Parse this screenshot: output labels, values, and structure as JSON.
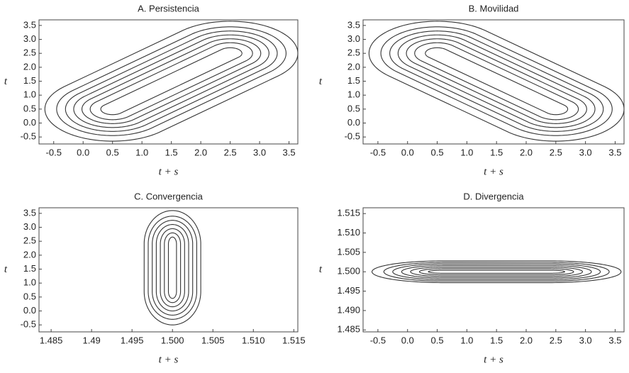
{
  "chart_data": [
    {
      "type": "contour",
      "title": "A. Persistencia",
      "xlabel": "t + s",
      "ylabel": "t",
      "xlim": [
        -0.75,
        3.65
      ],
      "ylim": [
        -0.75,
        3.7
      ],
      "xticks": [
        -0.5,
        {
          "value": 0,
          "label": "0.0"
        },
        0.5,
        {
          "value": 1,
          "label": "1.0"
        },
        1.5,
        {
          "value": 2,
          "label": "2.0"
        },
        2.5,
        {
          "value": 3,
          "label": "3.0"
        },
        3.5
      ],
      "yticks": [
        -0.5,
        {
          "value": 0,
          "label": "0.0"
        },
        0.5,
        {
          "value": 1,
          "label": "1.0"
        },
        1.5,
        {
          "value": 2,
          "label": "2.0"
        },
        2.5,
        {
          "value": 3,
          "label": "3.0"
        },
        3.5
      ],
      "color": "#333333",
      "contours": [
        {
          "x0": 0.5,
          "y0": 0.5,
          "x1": 2.5,
          "y1": 2.5,
          "rx": 0.2,
          "ry": 0.2
        },
        {
          "x0": 0.5,
          "y0": 0.5,
          "x1": 2.5,
          "y1": 2.5,
          "rx": 0.38,
          "ry": 0.38
        },
        {
          "x0": 0.5,
          "y0": 0.5,
          "x1": 2.5,
          "y1": 2.5,
          "rx": 0.52,
          "ry": 0.52
        },
        {
          "x0": 0.5,
          "y0": 0.5,
          "x1": 2.5,
          "y1": 2.5,
          "rx": 0.66,
          "ry": 0.66
        },
        {
          "x0": 0.5,
          "y0": 0.5,
          "x1": 2.5,
          "y1": 2.5,
          "rx": 0.8,
          "ry": 0.8
        },
        {
          "x0": 0.5,
          "y0": 0.5,
          "x1": 2.5,
          "y1": 2.5,
          "rx": 0.95,
          "ry": 0.95
        },
        {
          "x0": 0.5,
          "y0": 0.5,
          "x1": 2.5,
          "y1": 2.5,
          "rx": 1.15,
          "ry": 1.15
        }
      ]
    },
    {
      "type": "contour",
      "title": "B. Movilidad",
      "xlabel": "t + s",
      "ylabel": "t",
      "xlim": [
        -0.75,
        3.65
      ],
      "ylim": [
        -0.75,
        3.7
      ],
      "xticks": [
        -0.5,
        {
          "value": 0,
          "label": "0.0"
        },
        0.5,
        {
          "value": 1,
          "label": "1.0"
        },
        1.5,
        {
          "value": 2,
          "label": "2.0"
        },
        2.5,
        {
          "value": 3,
          "label": "3.0"
        },
        3.5
      ],
      "yticks": [
        -0.5,
        {
          "value": 0,
          "label": "0.0"
        },
        0.5,
        {
          "value": 1,
          "label": "1.0"
        },
        1.5,
        {
          "value": 2,
          "label": "2.0"
        },
        2.5,
        {
          "value": 3,
          "label": "3.0"
        },
        3.5
      ],
      "color": "#333333",
      "contours": [
        {
          "x0": 0.5,
          "y0": 2.5,
          "x1": 2.5,
          "y1": 0.5,
          "rx": 0.2,
          "ry": 0.2
        },
        {
          "x0": 0.5,
          "y0": 2.5,
          "x1": 2.5,
          "y1": 0.5,
          "rx": 0.38,
          "ry": 0.38
        },
        {
          "x0": 0.5,
          "y0": 2.5,
          "x1": 2.5,
          "y1": 0.5,
          "rx": 0.52,
          "ry": 0.52
        },
        {
          "x0": 0.5,
          "y0": 2.5,
          "x1": 2.5,
          "y1": 0.5,
          "rx": 0.66,
          "ry": 0.66
        },
        {
          "x0": 0.5,
          "y0": 2.5,
          "x1": 2.5,
          "y1": 0.5,
          "rx": 0.8,
          "ry": 0.8
        },
        {
          "x0": 0.5,
          "y0": 2.5,
          "x1": 2.5,
          "y1": 0.5,
          "rx": 0.95,
          "ry": 0.95
        },
        {
          "x0": 0.5,
          "y0": 2.5,
          "x1": 2.5,
          "y1": 0.5,
          "rx": 1.15,
          "ry": 1.15
        }
      ]
    },
    {
      "type": "contour",
      "title": "C. Convergencia",
      "xlabel": "t + s",
      "ylabel": "t",
      "xlim": [
        1.4835,
        1.5155
      ],
      "ylim": [
        -0.75,
        3.7
      ],
      "xticks": [
        1.485,
        1.49,
        1.495,
        {
          "value": 1.5,
          "label": "1.500"
        },
        1.505,
        {
          "value": 1.51,
          "label": "1.510"
        },
        1.515
      ],
      "yticks": [
        -0.5,
        {
          "value": 0,
          "label": "0.0"
        },
        0.5,
        {
          "value": 1,
          "label": "1.0"
        },
        1.5,
        {
          "value": 2,
          "label": "2.0"
        },
        2.5,
        {
          "value": 3,
          "label": "3.0"
        },
        3.5
      ],
      "color": "#333333",
      "contours": [
        {
          "x0": 1.5,
          "y0": 0.7,
          "x1": 1.5,
          "y1": 2.4,
          "rx": 0.0005,
          "ry": 0.25
        },
        {
          "x0": 1.5,
          "y0": 0.7,
          "x1": 1.5,
          "y1": 2.4,
          "rx": 0.001,
          "ry": 0.4
        },
        {
          "x0": 1.5,
          "y0": 0.7,
          "x1": 1.5,
          "y1": 2.4,
          "rx": 0.0015,
          "ry": 0.55
        },
        {
          "x0": 1.5,
          "y0": 0.7,
          "x1": 1.5,
          "y1": 2.4,
          "rx": 0.002,
          "ry": 0.7
        },
        {
          "x0": 1.5,
          "y0": 0.7,
          "x1": 1.5,
          "y1": 2.4,
          "rx": 0.0025,
          "ry": 0.85
        },
        {
          "x0": 1.5,
          "y0": 0.7,
          "x1": 1.5,
          "y1": 2.4,
          "rx": 0.003,
          "ry": 1.0
        },
        {
          "x0": 1.5,
          "y0": 0.7,
          "x1": 1.5,
          "y1": 2.4,
          "rx": 0.0035,
          "ry": 1.2
        }
      ]
    },
    {
      "type": "contour",
      "title": "D. Divergencia",
      "xlabel": "t + s",
      "ylabel": "t",
      "xlim": [
        -0.75,
        3.65
      ],
      "ylim": [
        1.4845,
        1.5165
      ],
      "xticks": [
        -0.5,
        {
          "value": 0,
          "label": "0.0"
        },
        0.5,
        {
          "value": 1,
          "label": "1.0"
        },
        1.5,
        {
          "value": 2,
          "label": "2.0"
        },
        2.5,
        {
          "value": 3,
          "label": "3.0"
        },
        3.5
      ],
      "yticks": [
        1.485,
        {
          "value": 1.49,
          "label": "1.490"
        },
        1.495,
        {
          "value": 1.5,
          "label": "1.500"
        },
        1.505,
        {
          "value": 1.51,
          "label": "1.510"
        },
        1.515
      ],
      "color": "#333333",
      "contours": [
        {
          "x0": 0.6,
          "y0": 1.5,
          "x1": 2.4,
          "y1": 1.5,
          "rx": 0.25,
          "ry": 0.0004
        },
        {
          "x0": 0.6,
          "y0": 1.5,
          "x1": 2.4,
          "y1": 1.5,
          "rx": 0.4,
          "ry": 0.0008
        },
        {
          "x0": 0.6,
          "y0": 1.5,
          "x1": 2.4,
          "y1": 1.5,
          "rx": 0.55,
          "ry": 0.0012
        },
        {
          "x0": 0.6,
          "y0": 1.5,
          "x1": 2.4,
          "y1": 1.5,
          "rx": 0.7,
          "ry": 0.0016
        },
        {
          "x0": 0.6,
          "y0": 1.5,
          "x1": 2.4,
          "y1": 1.5,
          "rx": 0.85,
          "ry": 0.002
        },
        {
          "x0": 0.6,
          "y0": 1.5,
          "x1": 2.4,
          "y1": 1.5,
          "rx": 1.0,
          "ry": 0.0024
        },
        {
          "x0": 0.6,
          "y0": 1.5,
          "x1": 2.4,
          "y1": 1.5,
          "rx": 1.2,
          "ry": 0.0028
        }
      ]
    }
  ]
}
